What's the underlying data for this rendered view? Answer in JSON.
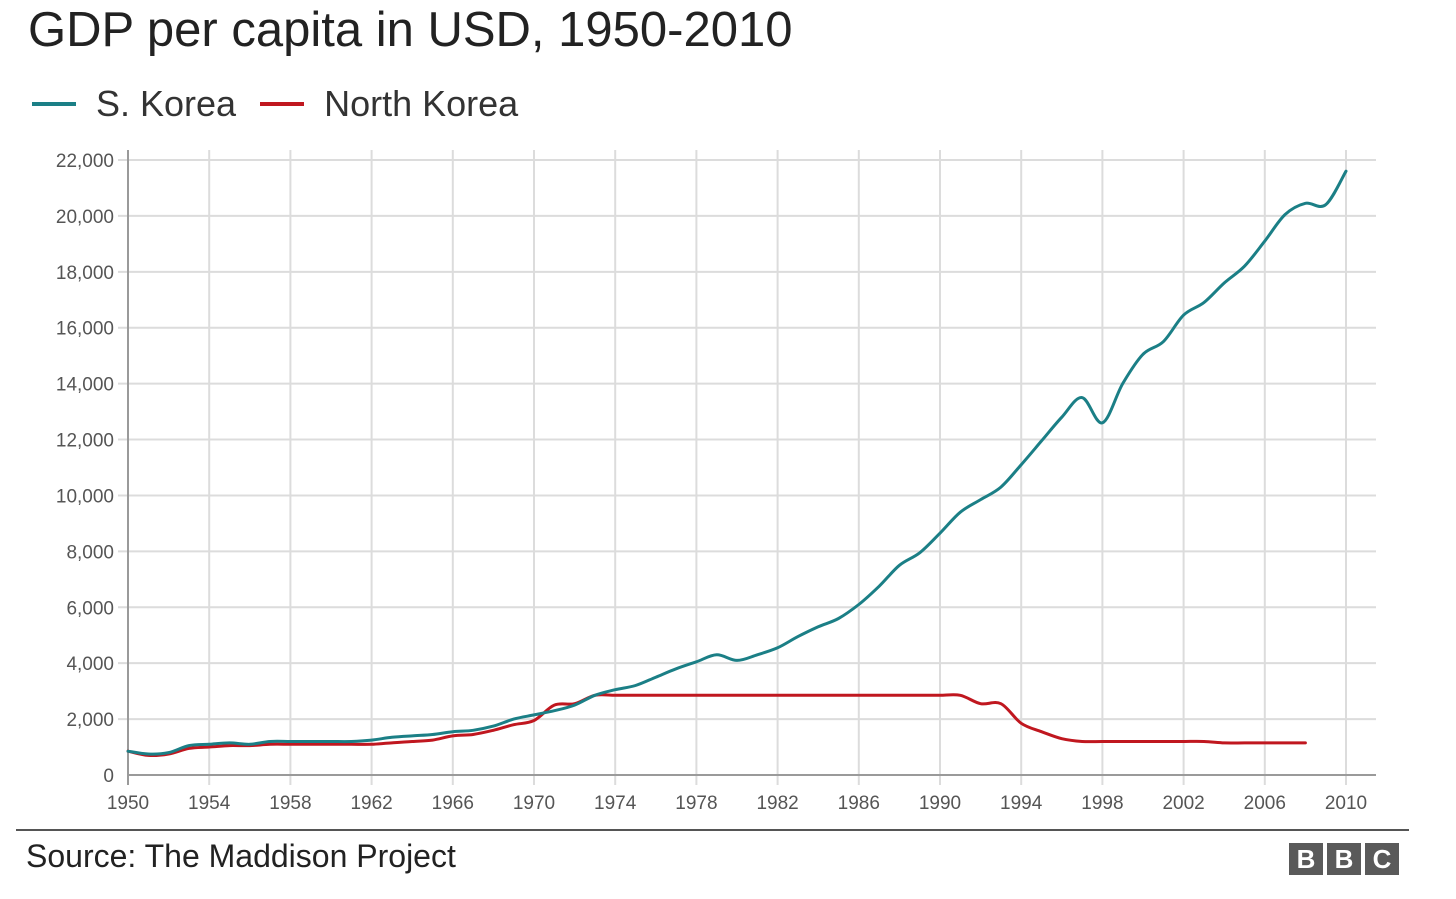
{
  "chart_data": {
    "type": "line",
    "title": "GDP per capita in USD, 1950-2010",
    "xlabel": "",
    "ylabel": "",
    "xlim": [
      1950,
      2010
    ],
    "ylim": [
      0,
      22000
    ],
    "x_ticks": [
      "1950",
      "1954",
      "1958",
      "1962",
      "1966",
      "1970",
      "1974",
      "1978",
      "1982",
      "1986",
      "1990",
      "1994",
      "1998",
      "2002",
      "2006",
      "2010"
    ],
    "y_ticks": [
      "0",
      "2,000",
      "4,000",
      "6,000",
      "8,000",
      "10,000",
      "12,000",
      "14,000",
      "16,000",
      "18,000",
      "20,000",
      "22,000"
    ],
    "grid": true,
    "legend_position": "top-left",
    "series": [
      {
        "name": "S. Korea",
        "color": "#1b7f86",
        "x": [
          1950,
          1951,
          1952,
          1953,
          1954,
          1955,
          1956,
          1957,
          1958,
          1959,
          1960,
          1961,
          1962,
          1963,
          1964,
          1965,
          1966,
          1967,
          1968,
          1969,
          1970,
          1971,
          1972,
          1973,
          1974,
          1975,
          1976,
          1977,
          1978,
          1979,
          1980,
          1981,
          1982,
          1983,
          1984,
          1985,
          1986,
          1987,
          1988,
          1989,
          1990,
          1991,
          1992,
          1993,
          1994,
          1995,
          1996,
          1997,
          1998,
          1999,
          2000,
          2001,
          2002,
          2003,
          2004,
          2005,
          2006,
          2007,
          2008,
          2009,
          2010
        ],
        "y": [
          850,
          750,
          800,
          1050,
          1100,
          1150,
          1100,
          1200,
          1200,
          1200,
          1200,
          1200,
          1250,
          1350,
          1400,
          1450,
          1550,
          1600,
          1750,
          2000,
          2150,
          2300,
          2500,
          2850,
          3050,
          3200,
          3500,
          3800,
          4050,
          4300,
          4100,
          4300,
          4550,
          4950,
          5300,
          5600,
          6100,
          6750,
          7500,
          7950,
          8650,
          9400,
          9850,
          10300,
          11100,
          11950,
          12800,
          13500,
          12600,
          14000,
          15050,
          15500,
          16450,
          16900,
          17600,
          18200,
          19100,
          20050,
          20450,
          20400,
          21600
        ]
      },
      {
        "name": "North Korea",
        "color": "#c0171f",
        "x": [
          1950,
          1951,
          1952,
          1953,
          1954,
          1955,
          1956,
          1957,
          1958,
          1959,
          1960,
          1961,
          1962,
          1963,
          1964,
          1965,
          1966,
          1967,
          1968,
          1969,
          1970,
          1971,
          1972,
          1973,
          1974,
          1975,
          1976,
          1977,
          1978,
          1979,
          1980,
          1981,
          1982,
          1983,
          1984,
          1985,
          1986,
          1987,
          1988,
          1989,
          1990,
          1991,
          1992,
          1993,
          1994,
          1995,
          1996,
          1997,
          1998,
          1999,
          2000,
          2001,
          2002,
          2003,
          2004,
          2005,
          2006,
          2007,
          2008
        ],
        "y": [
          850,
          700,
          750,
          950,
          1000,
          1050,
          1050,
          1100,
          1100,
          1100,
          1100,
          1100,
          1100,
          1150,
          1200,
          1250,
          1400,
          1450,
          1600,
          1800,
          1950,
          2500,
          2550,
          2850,
          2850,
          2850,
          2850,
          2850,
          2850,
          2850,
          2850,
          2850,
          2850,
          2850,
          2850,
          2850,
          2850,
          2850,
          2850,
          2850,
          2850,
          2850,
          2550,
          2550,
          1850,
          1550,
          1300,
          1200,
          1200,
          1200,
          1200,
          1200,
          1200,
          1200,
          1150,
          1150,
          1150,
          1150,
          1150
        ]
      }
    ]
  },
  "footer": {
    "source": "Source: The Maddison Project",
    "logo_letters": [
      "B",
      "B",
      "C"
    ]
  }
}
